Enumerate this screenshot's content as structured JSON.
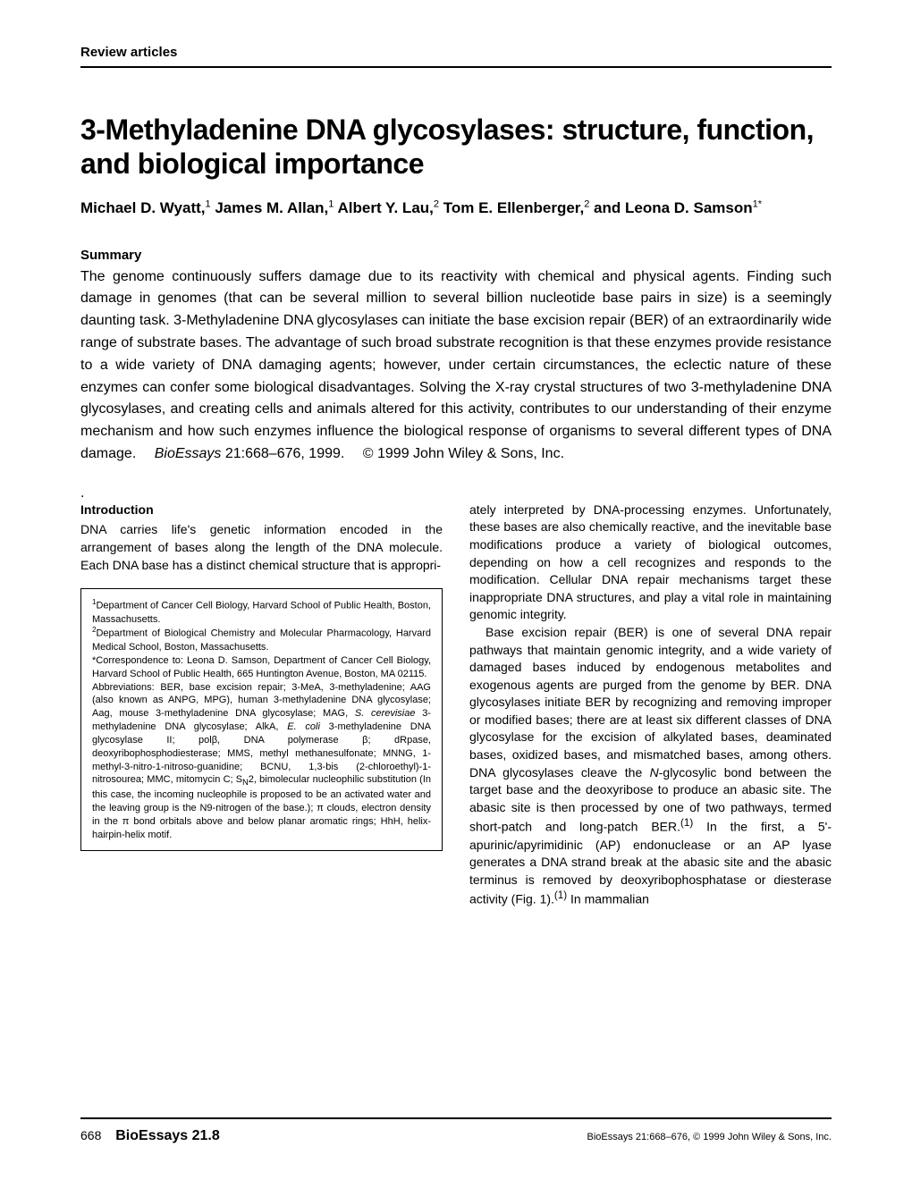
{
  "header": {
    "section_label": "Review articles"
  },
  "title": "3-Methyladenine DNA glycosylases: structure, function, and biological importance",
  "authors_html": "Michael D. Wyatt,<sup>1</sup> James M. Allan,<sup>1</sup> Albert Y. Lau,<sup>2</sup> Tom E. Ellenberger,<sup>2</sup> and Leona D. Samson<sup>1*</sup>",
  "summary": {
    "heading": "Summary",
    "text": "The genome continuously suffers damage due to its reactivity with chemical and physical agents. Finding such damage in genomes (that can be several million to several billion nucleotide base pairs in size) is a seemingly daunting task. 3-Methyladenine DNA glycosylases can initiate the base excision repair (BER) of an extraordinarily wide range of substrate bases. The advantage of such broad substrate recognition is that these enzymes provide resistance to a wide variety of DNA damaging agents; however, under certain circumstances, the eclectic nature of these enzymes can confer some biological disadvantages. Solving the X-ray crystal structures of two 3-methyladenine DNA glycosylases, and creating cells and animals altered for this activity, contributes to our understanding of their enzyme mechanism and how such enzymes influence the biological response of organisms to several different types of DNA damage.  BioEssays 21:668–676, 1999.  © 1999 John Wiley & Sons, Inc."
  },
  "intro": {
    "heading": "Introduction",
    "left_text": "DNA carries life's genetic information encoded in the arrangement of bases along the length of the DNA molecule. Each DNA base has a distinct chemical structure that is appropri-"
  },
  "affiliations": "<sup>1</sup>Department of Cancer Cell Biology, Harvard School of Public Health, Boston, Massachusetts.<br><sup>2</sup>Department of Biological Chemistry and Molecular Pharmacology, Harvard Medical School, Boston, Massachusetts.<br>*Correspondence to: Leona D. Samson, Department of Cancer Cell Biology, Harvard School of Public Health, 665 Huntington Avenue, Boston, MA 02115.<br>Abbreviations: BER, base excision repair; 3-MeA, 3-methyladenine; AAG (also known as ANPG, MPG), human 3-methyladenine DNA glycosylase; Aag, mouse 3-methyladenine DNA glycosylase; MAG, <span class=\"italic\">S. cerevisiae</span> 3-methyladenine DNA glycosylase; AlkA, <span class=\"italic\">E. coli</span> 3-methyladenine DNA glycosylase II; polβ, DNA polymerase β; dRpase, deoxyribophosphodiesterase; MMS, methyl methanesulfonate; MNNG, 1-methyl-3-nitro-1-nitroso-guanidine; BCNU, 1,3-bis (2-chloroethyl)-1-nitrosourea; MMC, mitomycin C; S<sub>N</sub>2, bimolecular nucleophilic substitution (In this case, the incoming nucleophile is proposed to be an activated water and the leaving group is the N9-nitrogen of the base.); π clouds, electron density in the π bond orbitals above and below planar aromatic rings; HhH, helix-hairpin-helix motif.",
  "right_col": {
    "p1": "ately interpreted by DNA-processing enzymes. Unfortunately, these bases are also chemically reactive, and the inevitable base modifications produce a variety of biological outcomes, depending on how a cell recognizes and responds to the modification. Cellular DNA repair mechanisms target these inappropriate DNA structures, and play a vital role in maintaining genomic integrity.",
    "p2": "Base excision repair (BER) is one of several DNA repair pathways that maintain genomic integrity, and a wide variety of damaged bases induced by endogenous metabolites and exogenous agents are purged from the genome by BER. DNA glycosylases initiate BER by recognizing and removing improper or modified bases; there are at least six different classes of DNA glycosylase for the excision of alkylated bases, deaminated bases, oxidized bases, and mismatched bases, among others. DNA glycosylases cleave the N-glycosylic bond between the target base and the deoxyribose to produce an abasic site. The abasic site is then processed by one of two pathways, termed short-patch and long-patch BER.(1) In the first, a 5'-apurinic/apyrimidinic (AP) endonuclease or an AP lyase generates a DNA strand break at the abasic site and the abasic terminus is removed by deoxyribophosphatase or diesterase activity (Fig. 1).(1) In mammalian"
  },
  "footer": {
    "page": "668",
    "journal_issue": "BioEssays 21.8",
    "right": "BioEssays 21:668–676, © 1999 John Wiley & Sons, Inc."
  },
  "colors": {
    "text": "#000000",
    "background": "#ffffff",
    "rule": "#000000"
  },
  "typography": {
    "title_fontsize": 32,
    "title_weight": 900,
    "authors_fontsize": 17,
    "summary_fontsize": 16,
    "body_fontsize": 14,
    "affiliations_fontsize": 11,
    "footer_fontsize": 11
  }
}
